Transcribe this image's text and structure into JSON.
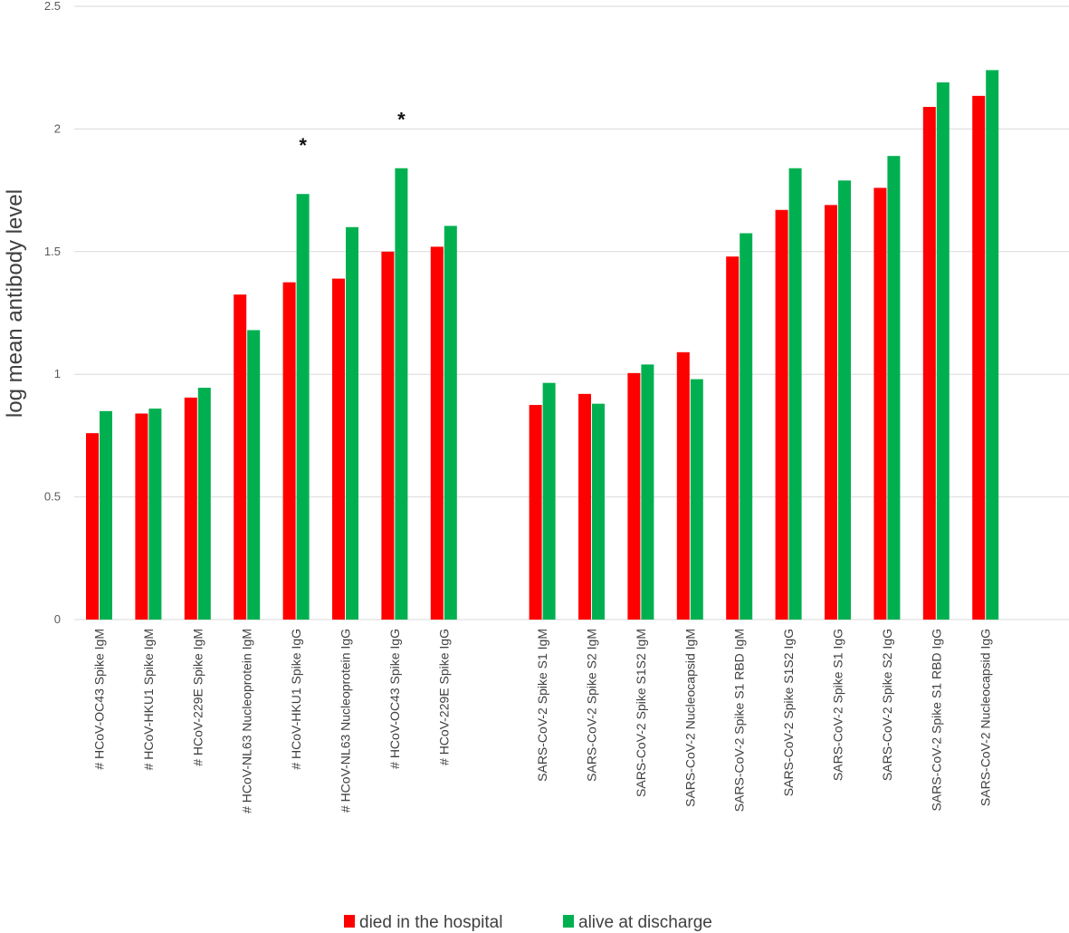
{
  "chart_data": {
    "type": "bar",
    "title": "",
    "xlabel": "",
    "ylabel": "log mean antibody level",
    "ylim": [
      0,
      2.5
    ],
    "yticks": [
      "0",
      "0.5",
      "1",
      "1.5",
      "2",
      "2.5"
    ],
    "grid": true,
    "legend_position": "bottom",
    "categories": [
      "# HCoV-OC43 Spike IgM",
      "# HCoV-HKU1 Spike IgM",
      "# HCoV-229E Spike IgM",
      "# HCoV-NL63 Nucleoprotein IgM",
      "# HCoV-HKU1 Spike IgG",
      "# HCoV-NL63 Nucleoprotein IgG",
      "# HCoV-OC43 Spike IgG",
      "# HCoV-229E Spike IgG",
      "",
      "SARS-CoV-2 Spike S1 IgM",
      "SARS-CoV-2 Spike S2 IgM",
      "SARS-CoV-2 Spike S1S2 IgM",
      "SARS-CoV-2 Nucleocapsid IgM",
      "SARS-CoV-2 Spike S1 RBD IgM",
      "SARS-CoV-2 Spike S1S2 IgG",
      "SARS-CoV-2 Spike S1 IgG",
      "SARS-CoV-2 Spike S2 IgG",
      "SARS-CoV-2 Spike S1 RBD IgG",
      "SARS-CoV-2 Nucleocapsid IgG"
    ],
    "series": [
      {
        "name": "died in the hospital",
        "color": "#ff0000",
        "values": [
          0.76,
          0.84,
          0.905,
          1.325,
          1.375,
          1.39,
          1.5,
          1.52,
          null,
          0.875,
          0.92,
          1.005,
          1.09,
          1.48,
          1.67,
          1.69,
          1.76,
          2.09,
          2.135
        ]
      },
      {
        "name": "alive at discharge",
        "color": "#00b050",
        "values": [
          0.85,
          0.86,
          0.945,
          1.18,
          1.735,
          1.6,
          1.84,
          1.605,
          null,
          0.965,
          0.88,
          1.04,
          0.98,
          1.575,
          1.84,
          1.79,
          1.89,
          2.19,
          2.24
        ]
      }
    ],
    "annotations": [
      {
        "text": "*",
        "category_index": 4,
        "series": 1
      },
      {
        "text": "*",
        "category_index": 6,
        "series": 1
      }
    ]
  }
}
